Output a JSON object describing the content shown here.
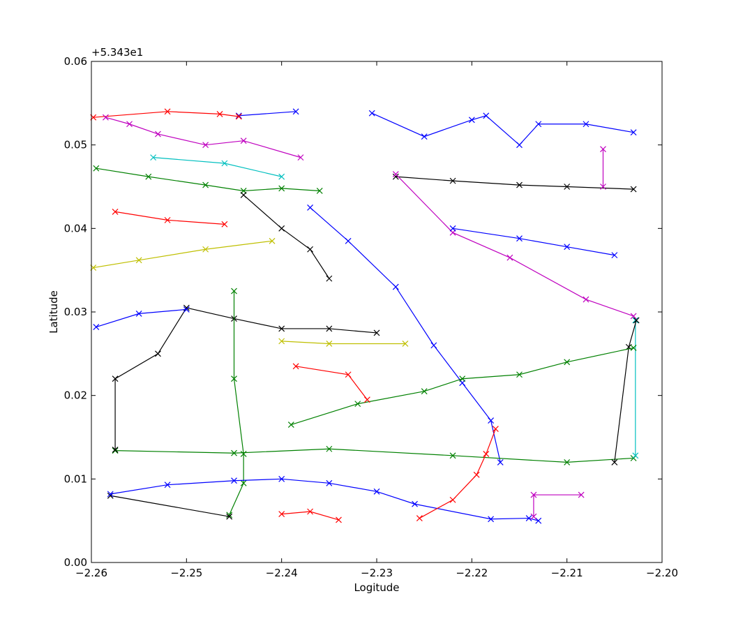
{
  "chart_data": {
    "type": "line",
    "marker": "x",
    "xlabel": "Logitude",
    "ylabel": "Latitude",
    "y_offset_label": "+5.343e1",
    "xlim": [
      -2.26,
      -2.2
    ],
    "ylim": [
      0,
      0.06
    ],
    "xticks": [
      {
        "value": -2.26,
        "label": "−2.26"
      },
      {
        "value": -2.25,
        "label": "−2.25"
      },
      {
        "value": -2.24,
        "label": "−2.24"
      },
      {
        "value": -2.23,
        "label": "−2.23"
      },
      {
        "value": -2.22,
        "label": "−2.22"
      },
      {
        "value": -2.21,
        "label": "−2.21"
      },
      {
        "value": -2.2,
        "label": "−2.20"
      }
    ],
    "yticks": [
      {
        "value": 0,
        "label": "0.00"
      },
      {
        "value": 0.01,
        "label": "0.01"
      },
      {
        "value": 0.02,
        "label": "0.02"
      },
      {
        "value": 0.03,
        "label": "0.03"
      },
      {
        "value": 0.04,
        "label": "0.04"
      },
      {
        "value": 0.05,
        "label": "0.05"
      },
      {
        "value": 0.06,
        "label": "0.06"
      }
    ],
    "series": [
      {
        "color": "#0000ff",
        "x": [
          -2.2445,
          -2.2385
        ],
        "values": [
          0.0535,
          0.054
        ]
      },
      {
        "color": "#000000",
        "x": [
          -2.228,
          -2.222,
          -2.215,
          -2.21,
          -2.203
        ],
        "values": [
          0.0462,
          0.0457,
          0.0452,
          0.045,
          0.0447
        ]
      },
      {
        "color": "#ff0000",
        "x": [
          -2.2598,
          -2.252,
          -2.2465,
          -2.2445
        ],
        "values": [
          0.0533,
          0.054,
          0.0537,
          0.0534
        ]
      },
      {
        "color": "#0000ff",
        "x": [
          -2.237,
          -2.233,
          -2.228,
          -2.224,
          -2.221,
          -2.218,
          -2.217
        ],
        "values": [
          0.0425,
          0.0385,
          0.033,
          0.026,
          0.0215,
          0.017,
          0.012
        ]
      },
      {
        "color": "#008000",
        "x": [
          -2.2575,
          -2.245,
          -2.235,
          -2.222,
          -2.21,
          -2.203
        ],
        "values": [
          0.0134,
          0.0131,
          0.0136,
          0.0128,
          0.012,
          0.0125
        ]
      },
      {
        "color": "#00bfbf",
        "x": [
          -2.2028,
          -2.2028
        ],
        "values": [
          0.029,
          0.0128
        ]
      },
      {
        "color": "#000000",
        "x": [
          -2.2027,
          -2.2035,
          -2.205
        ],
        "values": [
          0.029,
          0.0258,
          0.012
        ]
      },
      {
        "color": "#bf00bf",
        "x": [
          -2.228,
          -2.222,
          -2.216,
          -2.208,
          -2.203
        ],
        "values": [
          0.0465,
          0.0395,
          0.0365,
          0.0315,
          0.0295
        ]
      },
      {
        "color": "#ff0000",
        "x": [
          -2.2575,
          -2.252,
          -2.246
        ],
        "values": [
          0.042,
          0.041,
          0.0405
        ]
      },
      {
        "color": "#bfbf00",
        "x": [
          -2.2598,
          -2.255,
          -2.248,
          -2.241
        ],
        "values": [
          0.0353,
          0.0362,
          0.0375,
          0.0385
        ]
      },
      {
        "color": "#000000",
        "x": [
          -2.2575,
          -2.2575,
          -2.253,
          -2.25,
          -2.245,
          -2.24,
          -2.235,
          -2.23
        ],
        "values": [
          0.0135,
          0.022,
          0.025,
          0.0305,
          0.0292,
          0.028,
          0.028,
          0.0275
        ]
      },
      {
        "color": "#0000ff",
        "x": [
          -2.2595,
          -2.255,
          -2.25
        ],
        "values": [
          0.0282,
          0.0298,
          0.0303
        ]
      },
      {
        "color": "#008000",
        "x": [
          -2.245,
          -2.245,
          -2.244,
          -2.244,
          -2.2455
        ],
        "values": [
          0.0325,
          0.022,
          0.013,
          0.0095,
          0.0057
        ]
      },
      {
        "color": "#000000",
        "x": [
          -2.258,
          -2.2455
        ],
        "values": [
          0.008,
          0.0055
        ]
      },
      {
        "color": "#0000ff",
        "x": [
          -2.258,
          -2.252,
          -2.245,
          -2.24,
          -2.235,
          -2.23,
          -2.226,
          -2.218,
          -2.214,
          -2.213
        ],
        "values": [
          0.0082,
          0.0093,
          0.0098,
          0.01,
          0.0095,
          0.0085,
          0.007,
          0.0052,
          0.0053,
          0.005
        ]
      },
      {
        "color": "#bf00bf",
        "x": [
          -2.2135,
          -2.2135,
          -2.2085
        ],
        "values": [
          0.0055,
          0.0081,
          0.0081
        ]
      },
      {
        "color": "#0000ff",
        "x": [
          -2.2305,
          -2.225,
          -2.22,
          -2.2185,
          -2.215,
          -2.213,
          -2.208,
          -2.203
        ],
        "values": [
          0.0538,
          0.051,
          0.053,
          0.0535,
          0.05,
          0.0525,
          0.0525,
          0.0515
        ]
      },
      {
        "color": "#008000",
        "x": [
          -2.239,
          -2.232,
          -2.225,
          -2.221,
          -2.215,
          -2.21,
          -2.203
        ],
        "values": [
          0.0165,
          0.019,
          0.0205,
          0.022,
          0.0225,
          0.024,
          0.0257
        ]
      },
      {
        "color": "#bfbf00",
        "x": [
          -2.24,
          -2.235,
          -2.227
        ],
        "values": [
          0.0265,
          0.0262,
          0.0262
        ]
      },
      {
        "color": "#ff0000",
        "x": [
          -2.2385,
          -2.233,
          -2.231
        ],
        "values": [
          0.0235,
          0.0225,
          0.0195
        ]
      },
      {
        "color": "#00bfbf",
        "x": [
          -2.2535,
          -2.246,
          -2.24
        ],
        "values": [
          0.0485,
          0.0478,
          0.0462
        ]
      },
      {
        "color": "#bf00bf",
        "x": [
          -2.2585,
          -2.256,
          -2.253,
          -2.248,
          -2.244,
          -2.238
        ],
        "values": [
          0.0533,
          0.0525,
          0.0513,
          0.05,
          0.0505,
          0.0485
        ]
      },
      {
        "color": "#008000",
        "x": [
          -2.2595,
          -2.254,
          -2.248,
          -2.244,
          -2.24,
          -2.236
        ],
        "values": [
          0.0472,
          0.0462,
          0.0452,
          0.0445,
          0.0448,
          0.0445
        ]
      },
      {
        "color": "#ff0000",
        "x": [
          -2.24,
          -2.237,
          -2.234
        ],
        "values": [
          0.0058,
          0.0061,
          0.0051
        ]
      },
      {
        "color": "#000000",
        "x": [
          -2.244,
          -2.24,
          -2.237,
          -2.235
        ],
        "values": [
          0.044,
          0.04,
          0.0375,
          0.034
        ]
      },
      {
        "color": "#0000ff",
        "x": [
          -2.222,
          -2.215,
          -2.21,
          -2.205
        ],
        "values": [
          0.04,
          0.0388,
          0.0378,
          0.0368
        ]
      },
      {
        "color": "#bf00bf",
        "x": [
          -2.2062,
          -2.2062
        ],
        "values": [
          0.045,
          0.0495
        ]
      },
      {
        "color": "#ff0000",
        "x": [
          -2.2255,
          -2.222,
          -2.2195,
          -2.2185,
          -2.2175
        ],
        "values": [
          0.0053,
          0.0075,
          0.0105,
          0.013,
          0.016
        ]
      }
    ]
  }
}
